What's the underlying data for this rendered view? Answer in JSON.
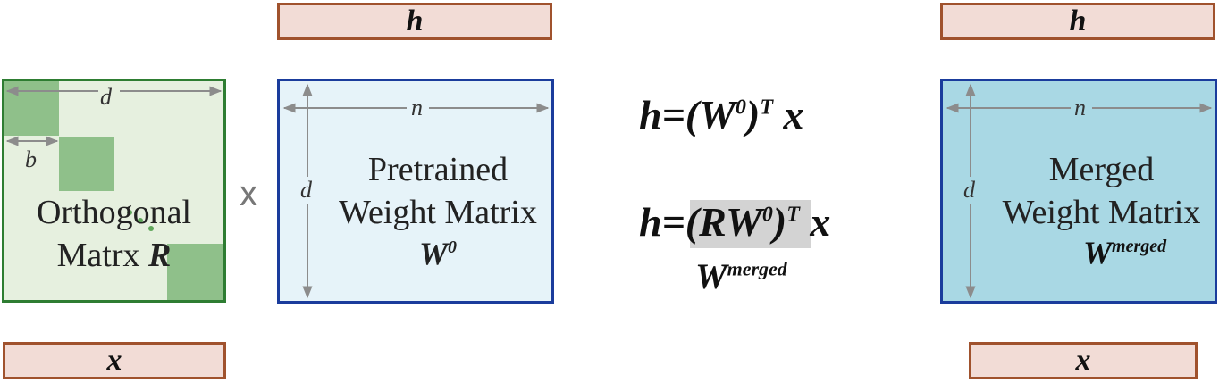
{
  "colors": {
    "vector_fill": "#f2dcd6",
    "vector_border": "#a0522d",
    "orthogonal_fill": "#e6f0df",
    "orthogonal_border": "#2e7d32",
    "block_fill": "#8fc08a",
    "pretrained_fill": "#e6f3f9",
    "pretrained_border": "#1a3c9c",
    "merged_fill": "#a9d8e4",
    "merged_border": "#1a3c9c",
    "arrow": "#8c8c8c",
    "highlight": "#d3d3d3"
  },
  "vectors": {
    "h_top_left": "h",
    "h_top_right": "h",
    "x_bottom_left": "x",
    "x_bottom_right": "x"
  },
  "orthogonal": {
    "dim_d": "d",
    "dim_b": "b",
    "label_line1": "Orthogonal",
    "label_line2": "Matrx",
    "symbol": "R"
  },
  "times_symbol": "x",
  "pretrained": {
    "dim_n": "n",
    "dim_d": "d",
    "label_line1": "Pretrained",
    "label_line2": "Weight Matrix",
    "symbol_base": "W",
    "symbol_sup": "0"
  },
  "equations": {
    "eq1_prefix": "h=(W",
    "eq1_sup0": "0",
    "eq1_close": ")",
    "eq1_supT": "T",
    "eq1_x": "x",
    "eq2_prefix": "h=",
    "eq2_highlight": "(RW",
    "eq2_sup0": "0",
    "eq2_close": ")",
    "eq2_supT": "T",
    "eq2_x": "x",
    "merged_base": "W",
    "merged_sup": "merged"
  },
  "merged": {
    "dim_n": "n",
    "dim_d": "d",
    "label_line1": "Merged",
    "label_line2": "Weight Matrix",
    "symbol_base": "W",
    "symbol_sup": "merged"
  }
}
